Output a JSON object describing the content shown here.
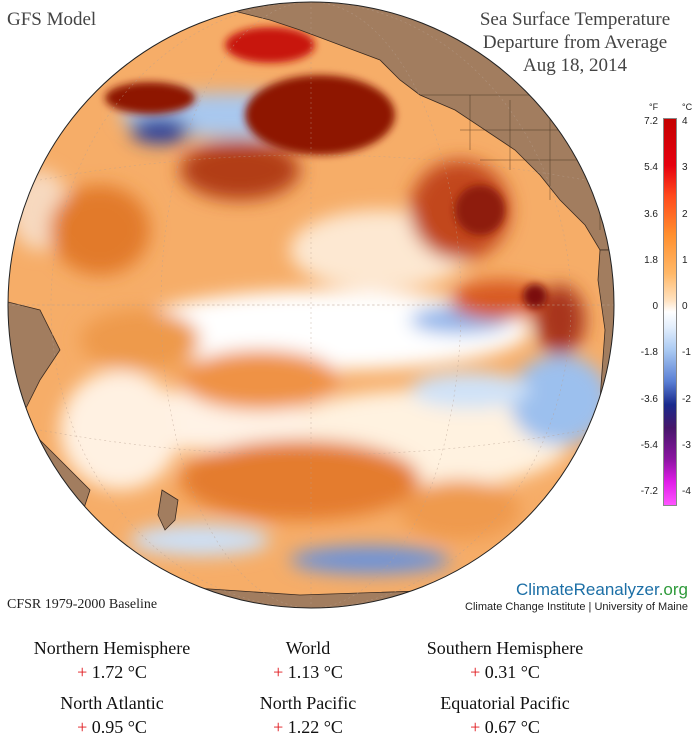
{
  "header": {
    "model": "GFS Model",
    "title_line1": "Sea Surface Temperature",
    "title_line2": "Departure from Average",
    "date": "Aug 18, 2014"
  },
  "legend": {
    "unit_f": "°F",
    "unit_c": "°C",
    "ticks_f": [
      "7.2",
      "5.4",
      "3.6",
      "1.8",
      "0",
      "-1.8",
      "-3.6",
      "-5.4",
      "-7.2"
    ],
    "ticks_c": [
      "4",
      "3",
      "2",
      "1",
      "0",
      "-1",
      "-2",
      "-3",
      "-4"
    ]
  },
  "footer": {
    "baseline": "CFSR 1979-2000 Baseline",
    "brand_main": "ClimateReanalyzer",
    "brand_suffix": ".org",
    "brand_sub": "Climate Change Institute | University of Maine"
  },
  "stats": [
    {
      "label": "Northern Hemisphere",
      "sign": "+",
      "value": "1.72 °C"
    },
    {
      "label": "World",
      "sign": "+",
      "value": "1.13 °C"
    },
    {
      "label": "Southern Hemisphere",
      "sign": "+",
      "value": "0.31 °C"
    },
    {
      "label": "North Atlantic",
      "sign": "+",
      "value": "0.95 °C"
    },
    {
      "label": "North Pacific",
      "sign": "+",
      "value": "1.22 °C"
    },
    {
      "label": "Equatorial Pacific",
      "sign": "+",
      "value": "0.67 °C"
    }
  ],
  "colors": {
    "land": "#a27d5f",
    "ocean_warm": "#f4a35c",
    "ocean_hot": "#9a1a0a",
    "ocean_cool": "#b8d6f6",
    "positive_sign": "#e0181c"
  }
}
